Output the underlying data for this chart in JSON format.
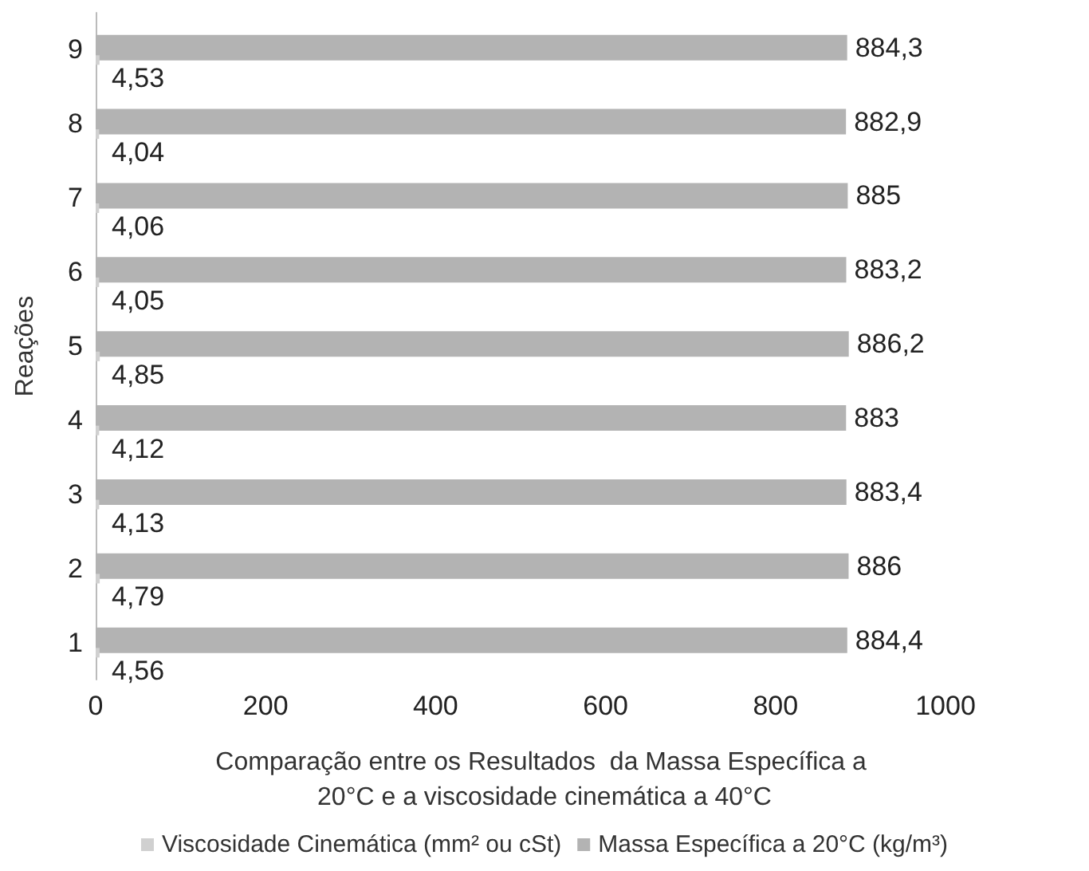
{
  "chart_data": {
    "type": "bar",
    "orientation": "horizontal",
    "xlabel": "Comparação entre os Resultados  da Massa Específica a 20°C e a viscosidade cinemática a 40°C",
    "ylabel": "Reações",
    "categories": [
      "9",
      "8",
      "7",
      "6",
      "5",
      "4",
      "3",
      "2",
      "1"
    ],
    "series": [
      {
        "name": "Viscosidade Cinemática (mm² ou cSt)",
        "color": "#d0d0d0",
        "values": [
          4.53,
          4.04,
          4.06,
          4.05,
          4.85,
          4.12,
          4.13,
          4.79,
          4.56
        ],
        "value_labels": [
          "4,53",
          "4,04",
          "4,06",
          "4,05",
          "4,85",
          "4,12",
          "4,13",
          "4,79",
          "4,56"
        ]
      },
      {
        "name": "Massa Específica a 20°C (kg/m³)",
        "color": "#b3b3b3",
        "values": [
          884.3,
          882.9,
          885,
          883.2,
          886.2,
          883,
          883.4,
          886,
          884.4
        ],
        "value_labels": [
          "884,3",
          "882,9",
          "885",
          "883,2",
          "886,2",
          "883",
          "883,4",
          "886",
          "884,4"
        ]
      }
    ],
    "xlim": [
      0,
      1000
    ],
    "xticks": [
      0,
      200,
      400,
      600,
      800,
      1000
    ],
    "grid": false,
    "legend": "bottom"
  }
}
